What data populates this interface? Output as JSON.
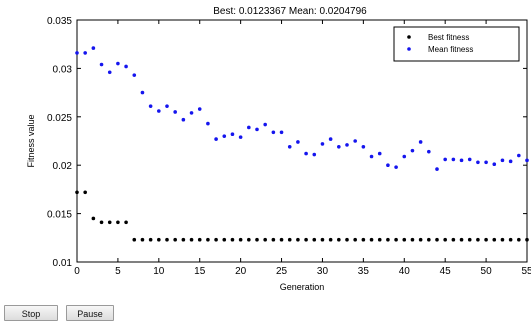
{
  "chart_data": {
    "type": "scatter",
    "title": "Best: 0.0123367 Mean: 0.0204796",
    "xlabel": "Generation",
    "ylabel": "Fitness value",
    "xlim": [
      0,
      55
    ],
    "ylim": [
      0.01,
      0.035
    ],
    "xticks": [
      0,
      5,
      10,
      15,
      20,
      25,
      30,
      35,
      40,
      45,
      50,
      55
    ],
    "yticks": [
      0.01,
      0.015,
      0.02,
      0.025,
      0.03,
      0.035
    ],
    "grid": false,
    "legend_position": "top-right",
    "series": [
      {
        "name": "Best fitness",
        "color": "#000000",
        "x": [
          0,
          1,
          2,
          3,
          4,
          5,
          6,
          7,
          8,
          9,
          10,
          11,
          12,
          13,
          14,
          15,
          16,
          17,
          18,
          19,
          20,
          21,
          22,
          23,
          24,
          25,
          26,
          27,
          28,
          29,
          30,
          31,
          32,
          33,
          34,
          35,
          36,
          37,
          38,
          39,
          40,
          41,
          42,
          43,
          44,
          45,
          46,
          47,
          48,
          49,
          50,
          51,
          52,
          53,
          54,
          55
        ],
        "y": [
          0.0172,
          0.0172,
          0.0145,
          0.0141,
          0.0141,
          0.0141,
          0.0141,
          0.0123,
          0.0123,
          0.0123,
          0.0123,
          0.0123,
          0.0123,
          0.0123,
          0.0123,
          0.0123,
          0.0123,
          0.0123,
          0.0123,
          0.0123,
          0.0123,
          0.0123,
          0.0123,
          0.0123,
          0.0123,
          0.0123,
          0.0123,
          0.0123,
          0.0123,
          0.0123,
          0.0123,
          0.0123,
          0.0123,
          0.0123,
          0.0123,
          0.0123,
          0.0123,
          0.0123,
          0.0123,
          0.0123,
          0.0123,
          0.0123,
          0.0123,
          0.0123,
          0.0123,
          0.0123,
          0.0123,
          0.0123,
          0.0123,
          0.0123,
          0.0123,
          0.0123,
          0.0123,
          0.0123,
          0.0123,
          0.0123
        ]
      },
      {
        "name": "Mean fitness",
        "color": "#1515ee",
        "x": [
          0,
          1,
          2,
          3,
          4,
          5,
          6,
          7,
          8,
          9,
          10,
          11,
          12,
          13,
          14,
          15,
          16,
          17,
          18,
          19,
          20,
          21,
          22,
          23,
          24,
          25,
          26,
          27,
          28,
          29,
          30,
          31,
          32,
          33,
          34,
          35,
          36,
          37,
          38,
          39,
          40,
          41,
          42,
          43,
          44,
          45,
          46,
          47,
          48,
          49,
          50,
          51,
          52,
          53,
          54,
          55
        ],
        "y": [
          0.0316,
          0.0316,
          0.0321,
          0.0304,
          0.0296,
          0.0305,
          0.0302,
          0.0293,
          0.0275,
          0.0261,
          0.0256,
          0.0261,
          0.0255,
          0.0247,
          0.0254,
          0.0258,
          0.0243,
          0.0227,
          0.023,
          0.0232,
          0.0229,
          0.0239,
          0.0237,
          0.0242,
          0.0234,
          0.0234,
          0.0219,
          0.0224,
          0.0212,
          0.0211,
          0.0222,
          0.0227,
          0.0219,
          0.0221,
          0.0225,
          0.0219,
          0.0209,
          0.0212,
          0.02,
          0.0198,
          0.0209,
          0.0215,
          0.0224,
          0.0214,
          0.0196,
          0.0206,
          0.0206,
          0.0205,
          0.0206,
          0.0203,
          0.0203,
          0.0201,
          0.0205,
          0.0204,
          0.021,
          0.0205
        ]
      }
    ]
  },
  "controls": {
    "stop_label": "Stop",
    "pause_label": "Pause"
  }
}
